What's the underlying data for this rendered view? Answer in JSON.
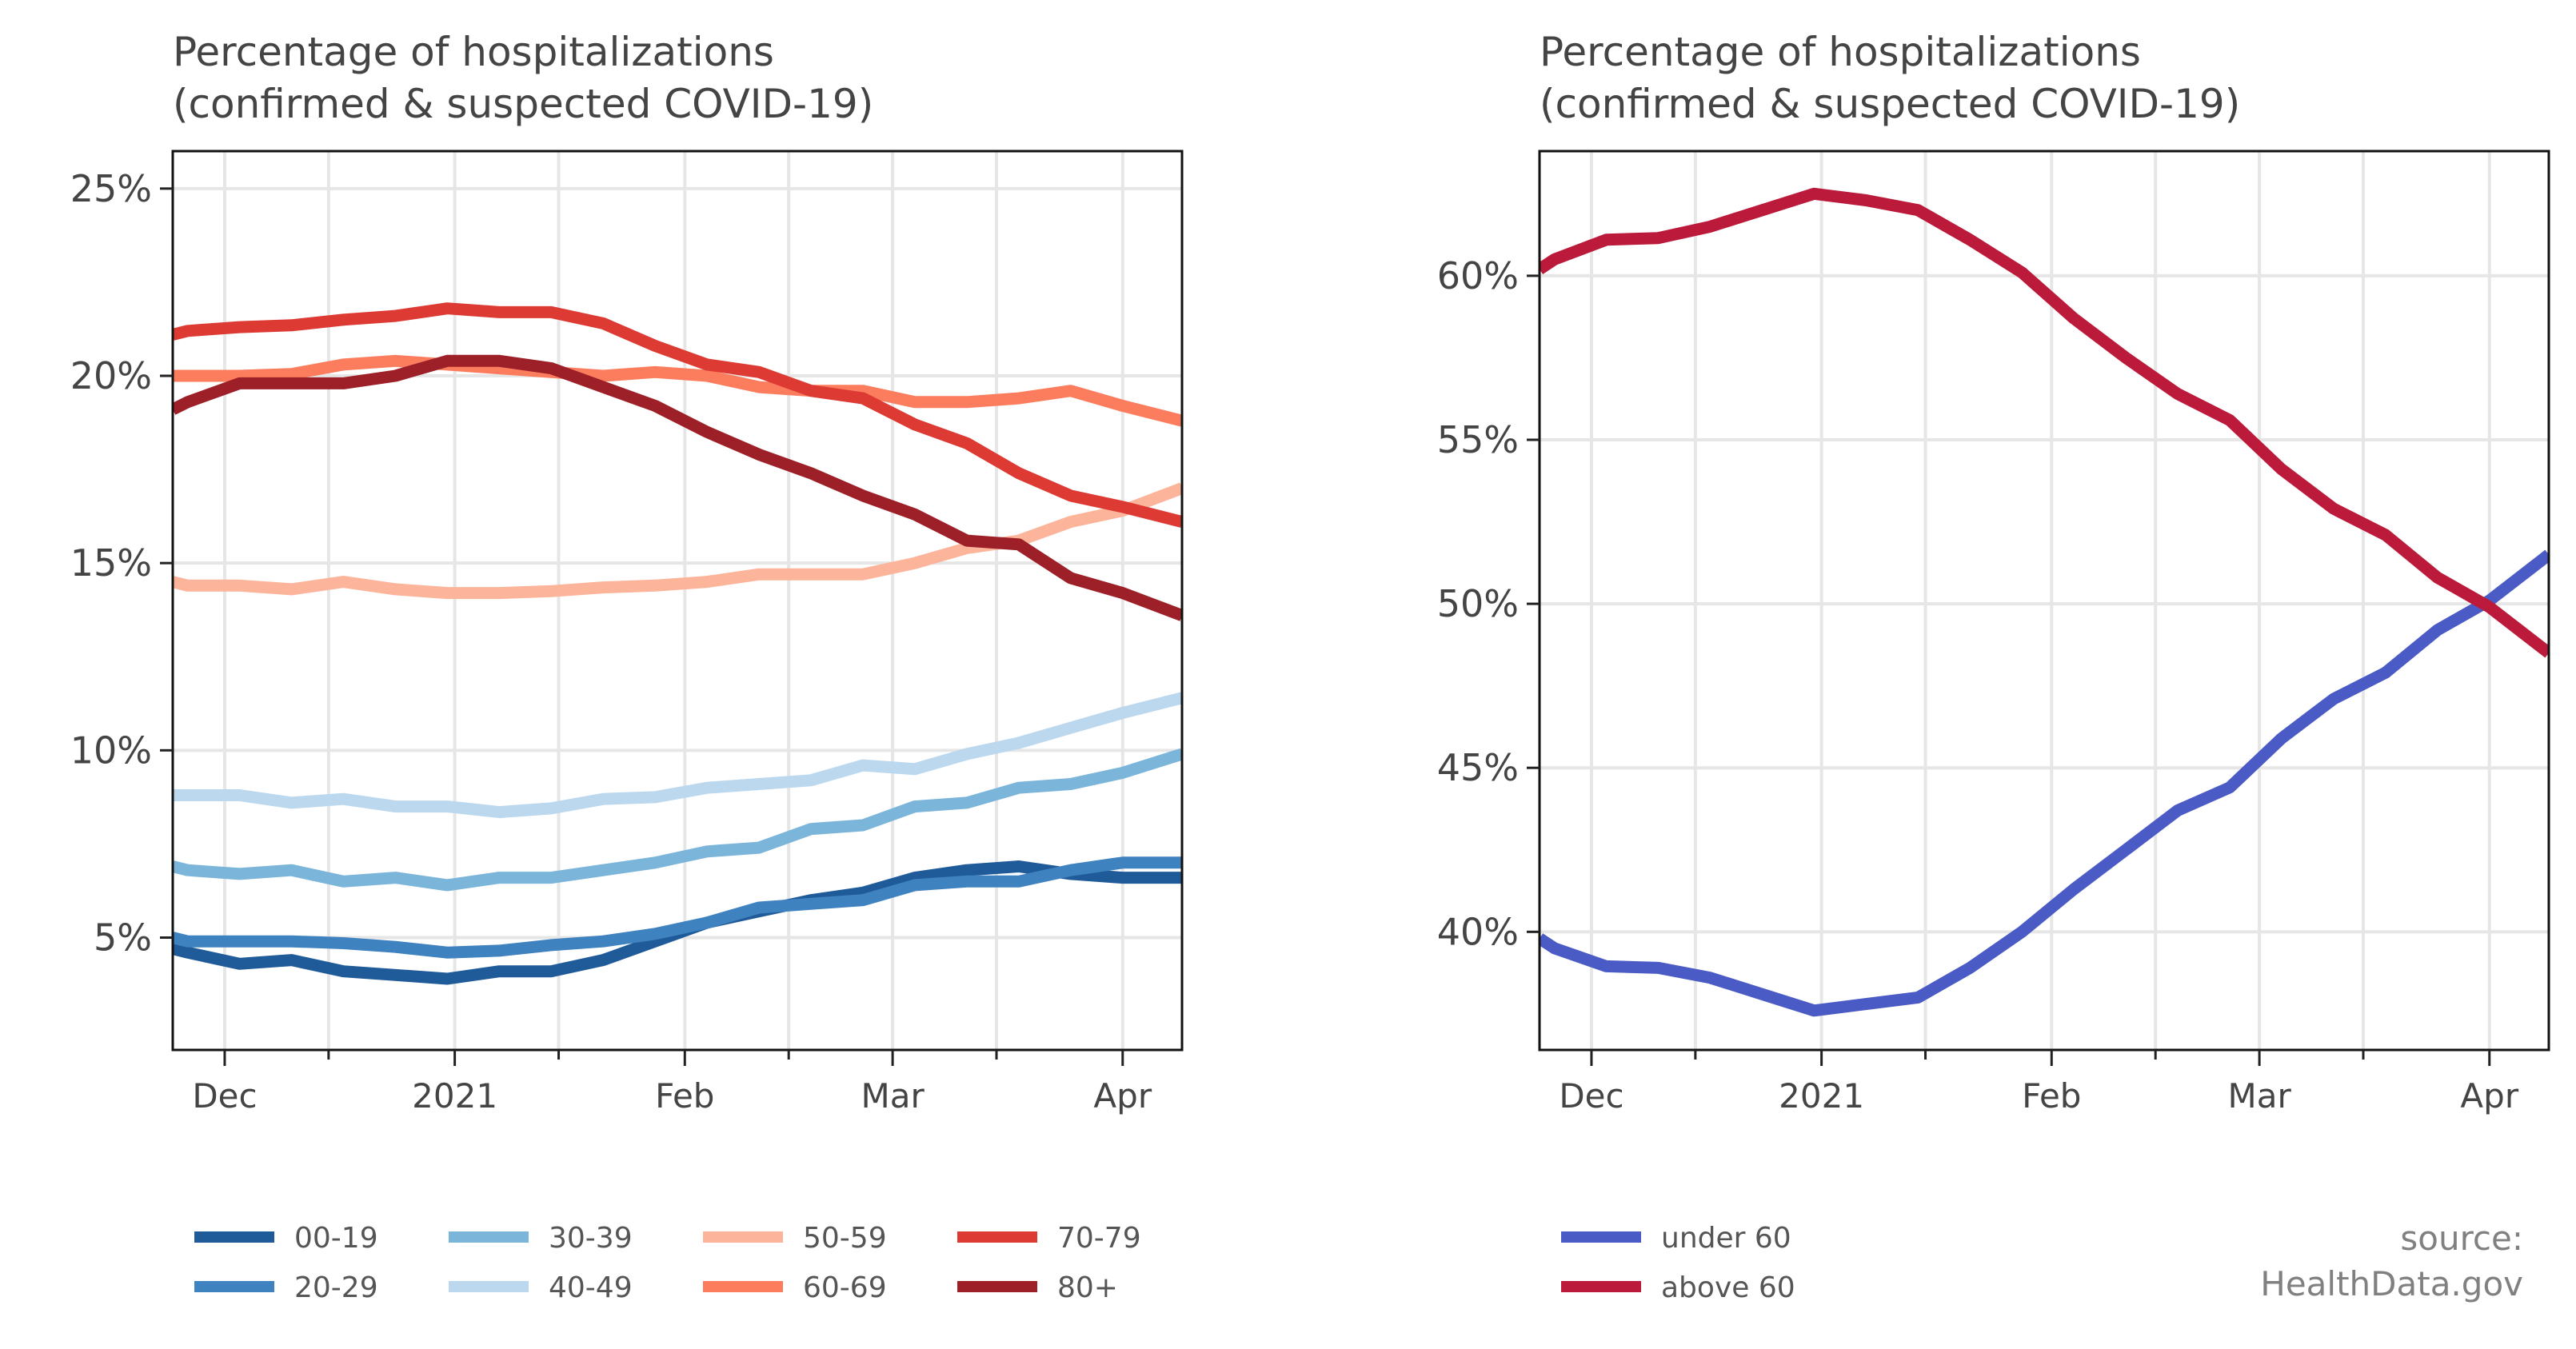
{
  "colors": {
    "00-19": "#1f5a99",
    "20-29": "#3f82c0",
    "30-39": "#7cb5da",
    "40-49": "#bcd8ee",
    "50-59": "#fcb49a",
    "60-69": "#fb7d5e",
    "70-79": "#dc3a33",
    "80+": "#9d1f27",
    "under 60": "#4a5bc5",
    "above 60": "#bc1a3a"
  },
  "chart_data": [
    {
      "type": "line",
      "title": "Percentage of hospitalizations\n(confirmed & suspected COVID-19)",
      "xlabel": "",
      "ylabel": "",
      "x_ticks": [
        {
          "label": "Dec",
          "date": "2020-12-01"
        },
        {
          "label": "2021",
          "date": "2021-01-01"
        },
        {
          "label": "Feb",
          "date": "2021-02-01"
        },
        {
          "label": "Mar",
          "date": "2021-03-01"
        },
        {
          "label": "Apr",
          "date": "2021-04-01"
        }
      ],
      "y_ticks": [
        "5%",
        "10%",
        "15%",
        "20%",
        "25%"
      ],
      "y_tick_values": [
        5,
        10,
        15,
        20,
        25
      ],
      "xlim": [
        "2020-11-24",
        "2021-04-09"
      ],
      "ylim": [
        2.0,
        26.0
      ],
      "grid": true,
      "legend": "below, 4 columns",
      "x": [
        "2020-11-24",
        "2020-11-26",
        "2020-12-03",
        "2020-12-10",
        "2020-12-17",
        "2020-12-24",
        "2020-12-31",
        "2021-01-07",
        "2021-01-14",
        "2021-01-21",
        "2021-01-28",
        "2021-02-04",
        "2021-02-11",
        "2021-02-18",
        "2021-02-25",
        "2021-03-04",
        "2021-03-11",
        "2021-03-18",
        "2021-03-25",
        "2021-04-01",
        "2021-04-09"
      ],
      "series": [
        {
          "name": "00-19",
          "values": [
            4.7,
            4.6,
            4.3,
            4.4,
            4.1,
            4.0,
            3.9,
            4.1,
            4.1,
            4.4,
            4.9,
            5.4,
            5.7,
            6.0,
            6.2,
            6.6,
            6.8,
            6.9,
            6.7,
            6.6,
            6.6
          ]
        },
        {
          "name": "20-29",
          "values": [
            5.0,
            4.9,
            4.9,
            4.9,
            4.85,
            4.75,
            4.6,
            4.65,
            4.8,
            4.9,
            5.1,
            5.4,
            5.8,
            5.9,
            6.0,
            6.4,
            6.5,
            6.5,
            6.8,
            7.0,
            7.0
          ]
        },
        {
          "name": "30-39",
          "values": [
            6.9,
            6.8,
            6.7,
            6.8,
            6.5,
            6.6,
            6.4,
            6.6,
            6.6,
            6.8,
            7.0,
            7.3,
            7.4,
            7.9,
            8.0,
            8.5,
            8.6,
            9.0,
            9.1,
            9.4,
            9.9
          ]
        },
        {
          "name": "40-49",
          "values": [
            8.8,
            8.8,
            8.8,
            8.6,
            8.7,
            8.5,
            8.5,
            8.35,
            8.45,
            8.7,
            8.75,
            9.0,
            9.1,
            9.2,
            9.6,
            9.5,
            9.9,
            10.2,
            10.6,
            11.0,
            11.4
          ]
        },
        {
          "name": "50-59",
          "values": [
            14.5,
            14.4,
            14.4,
            14.3,
            14.5,
            14.3,
            14.2,
            14.2,
            14.25,
            14.35,
            14.4,
            14.5,
            14.7,
            14.7,
            14.7,
            15.0,
            15.4,
            15.6,
            16.1,
            16.4,
            17.0
          ]
        },
        {
          "name": "60-69",
          "values": [
            20.0,
            20.0,
            20.0,
            20.05,
            20.3,
            20.4,
            20.3,
            20.2,
            20.1,
            20.0,
            20.1,
            20.0,
            19.7,
            19.6,
            19.6,
            19.3,
            19.3,
            19.4,
            19.6,
            19.2,
            18.8
          ]
        },
        {
          "name": "70-79",
          "values": [
            21.1,
            21.2,
            21.3,
            21.35,
            21.5,
            21.6,
            21.8,
            21.7,
            21.7,
            21.4,
            20.8,
            20.3,
            20.1,
            19.6,
            19.4,
            18.7,
            18.2,
            17.4,
            16.8,
            16.5,
            16.1
          ]
        },
        {
          "name": "80+",
          "values": [
            19.1,
            19.3,
            19.8,
            19.8,
            19.8,
            20.0,
            20.4,
            20.4,
            20.2,
            19.7,
            19.2,
            18.5,
            17.9,
            17.4,
            16.8,
            16.3,
            15.6,
            15.5,
            14.6,
            14.2,
            13.6
          ]
        }
      ]
    },
    {
      "type": "line",
      "title": "Percentage of hospitalizations\n(confirmed & suspected COVID-19)",
      "xlabel": "",
      "ylabel": "",
      "x_ticks": [
        {
          "label": "Dec",
          "date": "2020-12-01"
        },
        {
          "label": "2021",
          "date": "2021-01-01"
        },
        {
          "label": "Feb",
          "date": "2021-02-01"
        },
        {
          "label": "Mar",
          "date": "2021-03-01"
        },
        {
          "label": "Apr",
          "date": "2021-04-01"
        }
      ],
      "y_ticks": [
        "40%",
        "45%",
        "50%",
        "55%",
        "60%"
      ],
      "y_tick_values": [
        40,
        45,
        50,
        55,
        60
      ],
      "xlim": [
        "2020-11-24",
        "2021-04-09"
      ],
      "ylim": [
        36.4,
        63.8
      ],
      "grid": true,
      "legend": "below, 1 column",
      "x": [
        "2020-11-24",
        "2020-11-26",
        "2020-12-03",
        "2020-12-10",
        "2020-12-17",
        "2020-12-24",
        "2020-12-31",
        "2021-01-07",
        "2021-01-14",
        "2021-01-21",
        "2021-01-28",
        "2021-02-04",
        "2021-02-11",
        "2021-02-18",
        "2021-02-25",
        "2021-03-04",
        "2021-03-11",
        "2021-03-18",
        "2021-03-25",
        "2021-04-01",
        "2021-04-09"
      ],
      "series": [
        {
          "name": "under 60",
          "values": [
            39.8,
            39.5,
            38.95,
            38.9,
            38.6,
            38.1,
            37.6,
            37.8,
            38.0,
            38.9,
            40.0,
            41.3,
            42.5,
            43.7,
            44.4,
            45.9,
            47.1,
            47.9,
            49.2,
            50.1,
            51.5
          ]
        },
        {
          "name": "above 60",
          "values": [
            60.2,
            60.5,
            61.1,
            61.15,
            61.5,
            62.0,
            62.5,
            62.3,
            62.0,
            61.1,
            60.1,
            58.7,
            57.5,
            56.4,
            55.6,
            54.1,
            52.9,
            52.1,
            50.8,
            49.9,
            48.5
          ]
        }
      ]
    }
  ],
  "source": {
    "line1": "source:",
    "line2": "HealthData.gov"
  }
}
